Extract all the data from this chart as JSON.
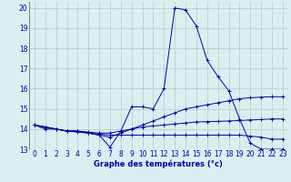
{
  "xlabel": "Graphe des températures (°c)",
  "background_color": "#daf0f0",
  "grid_color": "#b0cccc",
  "line_color": "#0000aa",
  "xlim": [
    -0.5,
    23.5
  ],
  "ylim": [
    13,
    20.3
  ],
  "yticks": [
    13,
    14,
    15,
    16,
    17,
    18,
    19,
    20
  ],
  "xticks": [
    0,
    1,
    2,
    3,
    4,
    5,
    6,
    7,
    8,
    9,
    10,
    11,
    12,
    13,
    14,
    15,
    16,
    17,
    18,
    19,
    20,
    21,
    22,
    23
  ],
  "series": [
    {
      "x": [
        0,
        1,
        2,
        3,
        4,
        5,
        6,
        7,
        8,
        9,
        10,
        11,
        12,
        13,
        14,
        15,
        16,
        17,
        18,
        19,
        20,
        21,
        22,
        23
      ],
      "y": [
        14.2,
        14.0,
        14.0,
        13.9,
        13.9,
        13.8,
        13.7,
        13.1,
        13.9,
        15.1,
        15.1,
        15.0,
        16.0,
        20.0,
        19.9,
        19.1,
        17.4,
        16.6,
        15.9,
        14.5,
        13.3,
        13.0,
        13.0,
        13.0
      ]
    },
    {
      "x": [
        0,
        1,
        2,
        3,
        4,
        5,
        6,
        7,
        8,
        9,
        10,
        11,
        12,
        13,
        14,
        15,
        16,
        17,
        18,
        19,
        20,
        21,
        22,
        23
      ],
      "y": [
        14.2,
        14.1,
        14.0,
        13.9,
        13.9,
        13.8,
        13.7,
        13.6,
        13.8,
        14.0,
        14.2,
        14.4,
        14.6,
        14.8,
        15.0,
        15.1,
        15.2,
        15.3,
        15.4,
        15.5,
        15.55,
        15.58,
        15.6,
        15.6
      ]
    },
    {
      "x": [
        0,
        1,
        2,
        3,
        4,
        5,
        6,
        7,
        8,
        9,
        10,
        11,
        12,
        13,
        14,
        15,
        16,
        17,
        18,
        19,
        20,
        21,
        22,
        23
      ],
      "y": [
        14.2,
        14.1,
        14.0,
        13.9,
        13.85,
        13.8,
        13.75,
        13.7,
        13.7,
        13.7,
        13.7,
        13.7,
        13.7,
        13.7,
        13.7,
        13.7,
        13.7,
        13.7,
        13.7,
        13.7,
        13.65,
        13.6,
        13.5,
        13.5
      ]
    },
    {
      "x": [
        0,
        1,
        2,
        3,
        4,
        5,
        6,
        7,
        8,
        9,
        10,
        11,
        12,
        13,
        14,
        15,
        16,
        17,
        18,
        19,
        20,
        21,
        22,
        23
      ],
      "y": [
        14.2,
        14.1,
        14.0,
        13.9,
        13.9,
        13.85,
        13.8,
        13.8,
        13.9,
        14.0,
        14.1,
        14.15,
        14.2,
        14.25,
        14.3,
        14.35,
        14.37,
        14.38,
        14.4,
        14.42,
        14.45,
        14.47,
        14.5,
        14.5
      ]
    }
  ]
}
